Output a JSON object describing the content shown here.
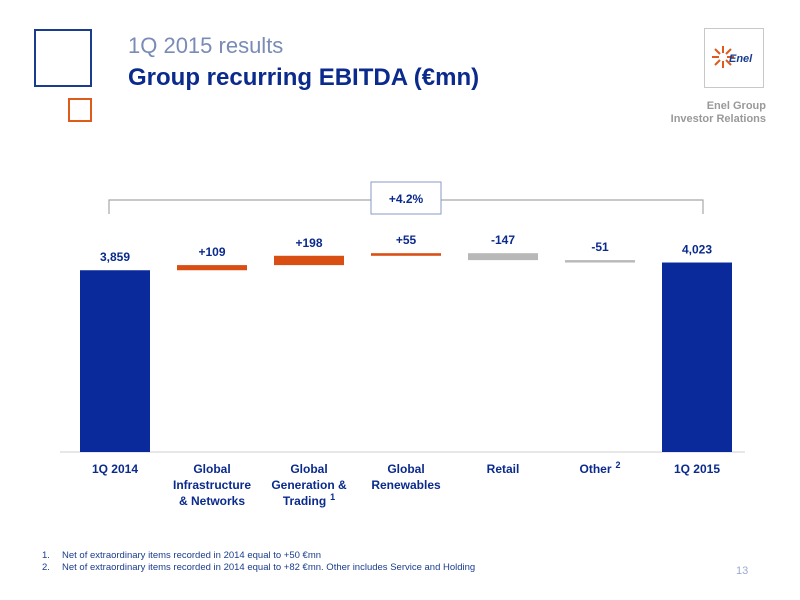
{
  "header": {
    "subtitle": "1Q 2015 results",
    "title": "Group recurring EBITDA (€mn)"
  },
  "logo": {
    "text": "Enel"
  },
  "department": {
    "line1": "Enel Group",
    "line2": "Investor Relations"
  },
  "chart_data": {
    "type": "bar",
    "subtype": "waterfall",
    "categories": [
      [
        "1Q 2014"
      ],
      [
        "Global",
        "Infrastructure",
        "& Networks"
      ],
      [
        "Global",
        "Generation &",
        "Trading"
      ],
      [
        "Global",
        "Renewables"
      ],
      [
        "Retail"
      ],
      [
        "Other"
      ],
      [
        "1Q 2015"
      ]
    ],
    "category_superscripts": [
      "",
      "",
      "1",
      "",
      "",
      "2",
      ""
    ],
    "values": [
      3859,
      109,
      198,
      55,
      -147,
      -51,
      4023
    ],
    "value_labels": [
      "3,859",
      "+109",
      "+198",
      "+55",
      "-147",
      "-51",
      "4,023"
    ],
    "kinds": [
      "total",
      "delta",
      "delta",
      "delta",
      "delta",
      "delta",
      "total"
    ],
    "change_annotation": "+4.2%",
    "colors": {
      "total": "#0a2a9c",
      "positive": "#d94e12",
      "negative": "#b8b8b8",
      "bracket": "#a8a8a8",
      "text": "#0a2a8c"
    }
  },
  "footnotes": [
    {
      "num": "1.",
      "text": "Net of extraordinary items recorded in 2014 equal to +50 €mn"
    },
    {
      "num": "2.",
      "text": "Net of extraordinary items recorded in 2014 equal to +82 €mn. Other includes  Service and Holding"
    }
  ],
  "page_number": "13"
}
